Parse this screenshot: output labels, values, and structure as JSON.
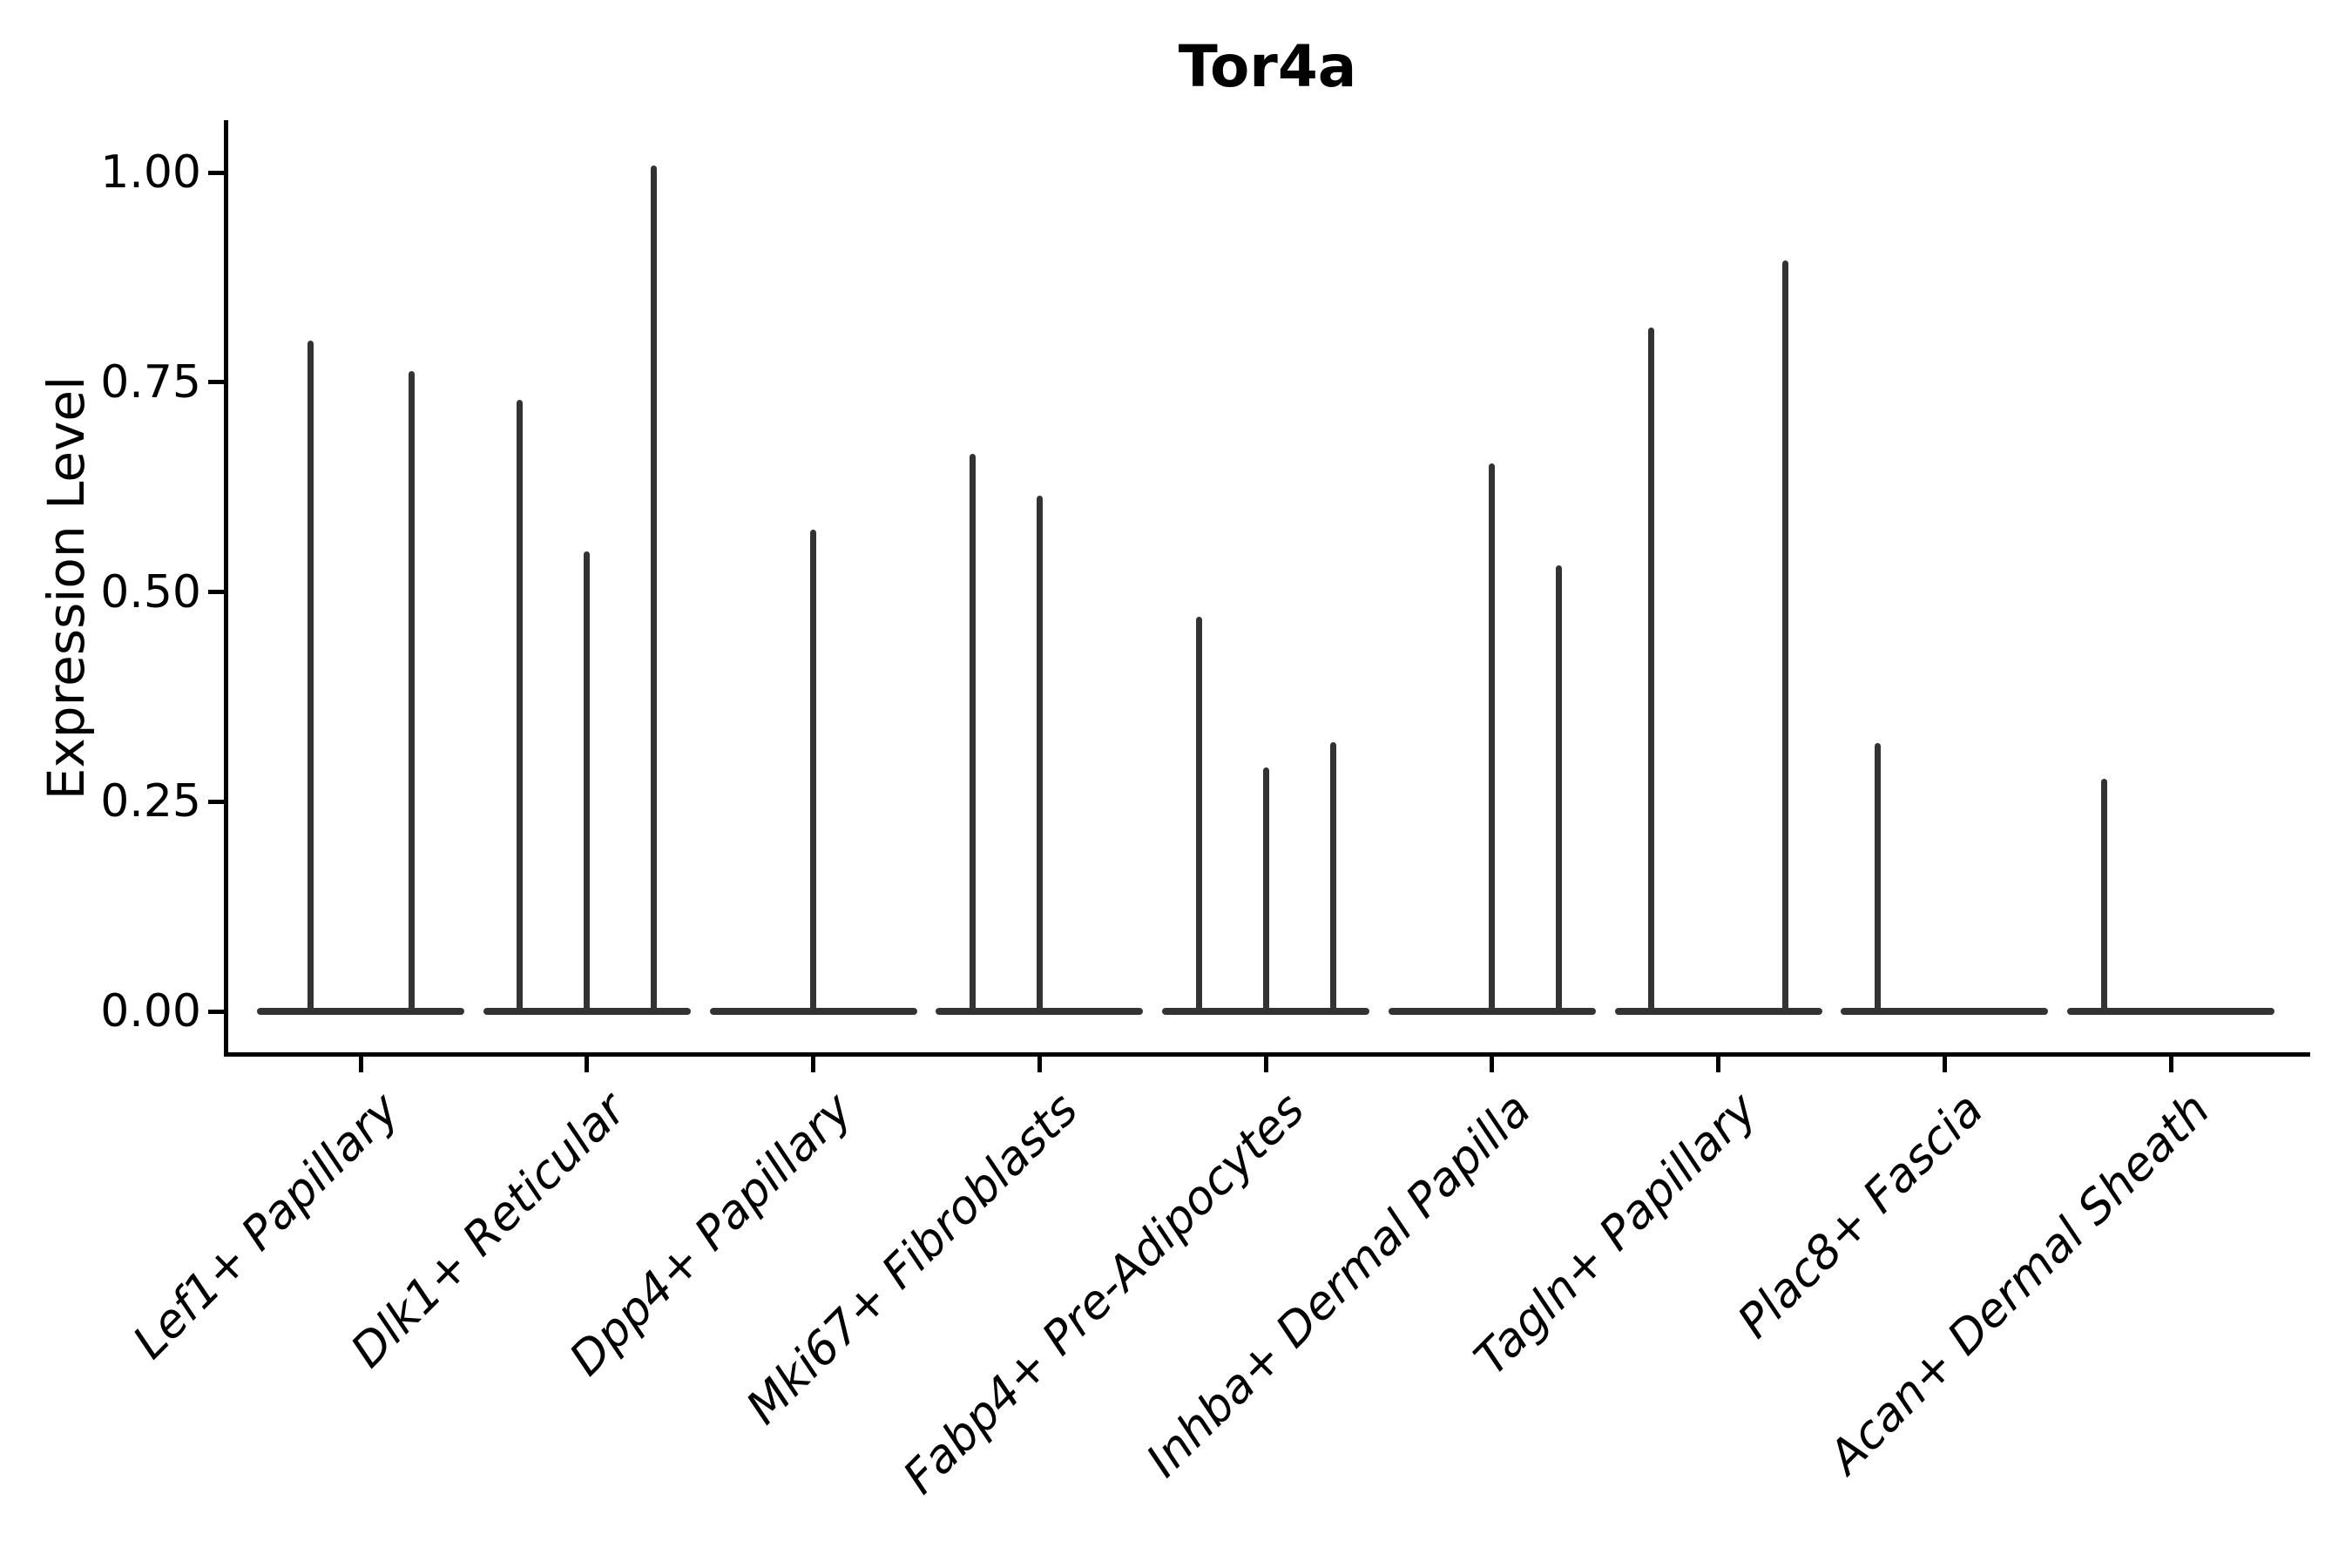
{
  "title": "Tor4a",
  "y_axis": {
    "label": "Expression Level",
    "ticks": [
      {
        "label": "0.00",
        "value": 0.0
      },
      {
        "label": "0.25",
        "value": 0.25
      },
      {
        "label": "0.50",
        "value": 0.5
      },
      {
        "label": "0.75",
        "value": 0.75
      },
      {
        "label": "1.00",
        "value": 1.0
      }
    ]
  },
  "colors": {
    "ink": "#333333",
    "axis": "#000000",
    "text": "#000000",
    "background": "#ffffff"
  },
  "chart_data": {
    "type": "violin",
    "title": "Tor4a",
    "xlabel": "",
    "ylabel": "Expression Level",
    "ylim": [
      -0.05,
      1.06
    ],
    "yticks": [
      0.0,
      0.25,
      0.5,
      0.75,
      1.0
    ],
    "grid": false,
    "legend": "none",
    "description": "Single-gene violin plot; each cluster shows a collapsed violin (flat line at 0) with thin vertical density spikes reaching the maximum expression values; offsets are dodge positions in px from the cluster center.",
    "categories": [
      "Lef1+ Papillary",
      "Dlk1+ Reticular",
      "Dpp4+ Papillary",
      "Mki67+ Fibroblasts",
      "Fabp4+ Pre-Adipocytes",
      "Inhba+ Dermal Papilla",
      "Tagln+ Papillary",
      "Plac8+ Fascia",
      "Acan+ Dermal Sheath"
    ],
    "violins": [
      {
        "category": "Lef1+ Papillary",
        "spikes": [
          {
            "offset": -58,
            "max": 0.8
          },
          {
            "offset": 58,
            "max": 0.763
          }
        ]
      },
      {
        "category": "Dlk1+ Reticular",
        "spikes": [
          {
            "offset": -77,
            "max": 0.729
          },
          {
            "offset": 0,
            "max": 0.548
          },
          {
            "offset": 77,
            "max": 1.008
          }
        ]
      },
      {
        "category": "Dpp4+ Papillary",
        "spikes": [
          {
            "offset": 0,
            "max": 0.574
          }
        ]
      },
      {
        "category": "Mki67+ Fibroblasts",
        "spikes": [
          {
            "offset": -77,
            "max": 0.665
          },
          {
            "offset": 0,
            "max": 0.615
          }
        ]
      },
      {
        "category": "Fabp4+ Pre-Adipocytes",
        "spikes": [
          {
            "offset": -77,
            "max": 0.47
          },
          {
            "offset": 0,
            "max": 0.291
          },
          {
            "offset": 77,
            "max": 0.321
          }
        ]
      },
      {
        "category": "Inhba+ Dermal Papilla",
        "spikes": [
          {
            "offset": 0,
            "max": 0.653
          },
          {
            "offset": 77,
            "max": 0.532
          }
        ]
      },
      {
        "category": "Tagln+ Papillary",
        "spikes": [
          {
            "offset": -77,
            "max": 0.815
          },
          {
            "offset": 77,
            "max": 0.895
          }
        ]
      },
      {
        "category": "Plac8+ Fascia",
        "spikes": [
          {
            "offset": -77,
            "max": 0.32
          }
        ]
      },
      {
        "category": "Acan+ Dermal Sheath",
        "spikes": [
          {
            "offset": -77,
            "max": 0.277
          }
        ]
      }
    ]
  }
}
